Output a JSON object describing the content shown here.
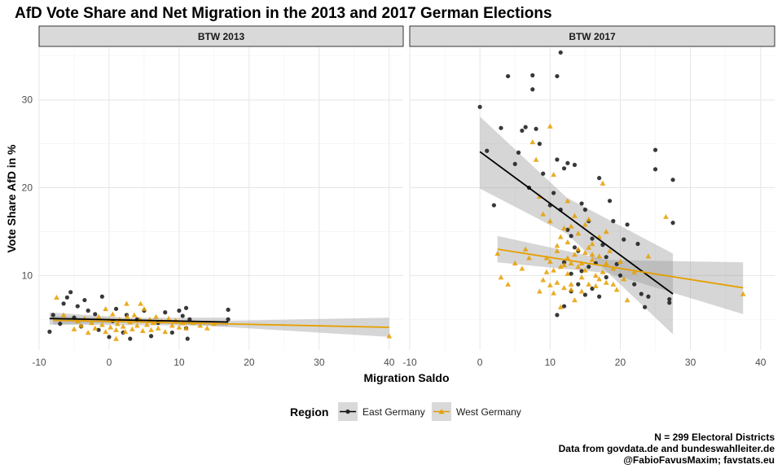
{
  "chart_data": {
    "type": "scatter",
    "title": "AfD Vote Share and Net Migration in the 2013 and 2017 German Elections",
    "xlabel": "Migration Saldo",
    "ylabel": "Vote Share AfD in %",
    "xlim": [
      -10,
      42
    ],
    "ylim": [
      1.5,
      36
    ],
    "x_ticks": [
      -10,
      0,
      10,
      20,
      30,
      40
    ],
    "y_ticks": [
      10,
      20,
      30
    ],
    "grid": true,
    "legend": {
      "title": "Region",
      "position": "bottom",
      "entries": [
        {
          "label": "East Germany",
          "color": "#222222",
          "shape": "circle"
        },
        {
          "label": "West Germany",
          "color": "#E69F00",
          "shape": "triangle"
        }
      ]
    },
    "caption": [
      "N = 299 Electoral Districts",
      "Data from govdata.de and bundeswahlleiter.de",
      "@FabioFavusMaxim; favstats.eu"
    ],
    "panels": [
      {
        "label": "BTW 2013",
        "series": [
          {
            "name": "East Germany",
            "points": [
              [
                -8.5,
                3.6
              ],
              [
                -8,
                5.5
              ],
              [
                -7,
                4.5
              ],
              [
                -6.5,
                6.8
              ],
              [
                -6,
                7.5
              ],
              [
                -5.5,
                8.1
              ],
              [
                -5,
                5.2
              ],
              [
                -4.5,
                6.5
              ],
              [
                -4,
                4.2
              ],
              [
                -3.5,
                7.2
              ],
              [
                -3,
                6.0
              ],
              [
                -2,
                5.6
              ],
              [
                -1.5,
                3.8
              ],
              [
                -1,
                7.6
              ],
              [
                0,
                3.0
              ],
              [
                0.5,
                4.8
              ],
              [
                1,
                6.2
              ],
              [
                2,
                3.5
              ],
              [
                2.5,
                5.5
              ],
              [
                3,
                2.8
              ],
              [
                4,
                5.0
              ],
              [
                5,
                6.0
              ],
              [
                6,
                3.1
              ],
              [
                7,
                4.6
              ],
              [
                8,
                5.8
              ],
              [
                9,
                3.5
              ],
              [
                10,
                6.0
              ],
              [
                10.5,
                5.4
              ],
              [
                11,
                6.3
              ],
              [
                11,
                4.0
              ],
              [
                11.2,
                2.8
              ],
              [
                11.5,
                5.0
              ],
              [
                17,
                5.0
              ],
              [
                17,
                6.1
              ]
            ],
            "trend": {
              "x": [
                -8.5,
                17
              ],
              "y": [
                5.1,
                4.7
              ],
              "ci_low_at_x0": 4.4,
              "ci_high_at_x0": 5.8
            }
          },
          {
            "name": "West Germany",
            "points": [
              [
                -7.5,
                7.5
              ],
              [
                -6.5,
                5.5
              ],
              [
                -5,
                3.9
              ],
              [
                -4.5,
                4.8
              ],
              [
                -4,
                4.3
              ],
              [
                -3.5,
                5.1
              ],
              [
                -3,
                3.5
              ],
              [
                -2.5,
                4.6
              ],
              [
                -2,
                4.0
              ],
              [
                -1.5,
                5.3
              ],
              [
                -1,
                4.4
              ],
              [
                -0.5,
                3.6
              ],
              [
                0,
                4.9
              ],
              [
                0.2,
                4.1
              ],
              [
                0.5,
                5.6
              ],
              [
                1,
                3.8
              ],
              [
                1.2,
                4.5
              ],
              [
                1.5,
                5.0
              ],
              [
                2,
                4.2
              ],
              [
                2.3,
                3.6
              ],
              [
                2.6,
                5.3
              ],
              [
                3,
                4.7
              ],
              [
                3.3,
                3.9
              ],
              [
                3.6,
                5.5
              ],
              [
                4,
                4.3
              ],
              [
                4.4,
                5.0
              ],
              [
                4.8,
                3.7
              ],
              [
                5,
                6.2
              ],
              [
                5.4,
                4.4
              ],
              [
                5.8,
                5.0
              ],
              [
                6,
                3.8
              ],
              [
                6.3,
                4.6
              ],
              [
                6.7,
                5.3
              ],
              [
                7,
                4.0
              ],
              [
                7.5,
                4.8
              ],
              [
                8,
                3.6
              ],
              [
                8.5,
                5.1
              ],
              [
                9,
                4.3
              ],
              [
                9.5,
                4.9
              ],
              [
                10,
                4.1
              ],
              [
                10.5,
                4.6
              ],
              [
                11,
                4.0
              ],
              [
                12,
                4.6
              ],
              [
                13,
                4.3
              ],
              [
                14,
                4.0
              ],
              [
                15,
                4.5
              ],
              [
                2.5,
                6.8
              ],
              [
                -0.5,
                6.2
              ],
              [
                4.5,
                6.8
              ],
              [
                1,
                2.8
              ],
              [
                40,
                3.1
              ]
            ],
            "trend": {
              "x": [
                -8,
                40
              ],
              "y": [
                4.9,
                4.1
              ],
              "ci_low_at_x40": 3.0,
              "ci_high_at_x40": 5.2
            }
          }
        ]
      },
      {
        "label": "BTW 2017",
        "series": [
          {
            "name": "East Germany",
            "points": [
              [
                0,
                29.2
              ],
              [
                1,
                24.2
              ],
              [
                2,
                18
              ],
              [
                3,
                26.8
              ],
              [
                4,
                32.7
              ],
              [
                5,
                22.7
              ],
              [
                5.5,
                24
              ],
              [
                6,
                26.5
              ],
              [
                6.5,
                26.9
              ],
              [
                7,
                20
              ],
              [
                7.5,
                32.8
              ],
              [
                7.5,
                31.2
              ],
              [
                8,
                26.7
              ],
              [
                8.5,
                25
              ],
              [
                10,
                18
              ],
              [
                11,
                32.7
              ],
              [
                11.5,
                35.4
              ],
              [
                11,
                23.2
              ],
              [
                12,
                22.2
              ],
              [
                12.5,
                22.8
              ],
              [
                10.5,
                19.4
              ],
              [
                11.5,
                17.5
              ],
              [
                12.5,
                15.2
              ],
              [
                13,
                14.5
              ],
              [
                13.5,
                13.2
              ],
              [
                14,
                12.8
              ],
              [
                14.5,
                18.2
              ],
              [
                15,
                17.5
              ],
              [
                15.5,
                16.2
              ],
              [
                16,
                14.2
              ],
              [
                16.5,
                11.4
              ],
              [
                17,
                21.1
              ],
              [
                17.5,
                13.5
              ],
              [
                18,
                12.1
              ],
              [
                18.5,
                18.5
              ],
              [
                19,
                16.2
              ],
              [
                19.5,
                11.3
              ],
              [
                20,
                10.0
              ],
              [
                20.5,
                14.1
              ],
              [
                21,
                15.8
              ],
              [
                11,
                5.5
              ],
              [
                12,
                6.5
              ],
              [
                13,
                8.2
              ],
              [
                14,
                9.0
              ],
              [
                15,
                7.8
              ],
              [
                15.5,
                11.0
              ],
              [
                16,
                8.5
              ],
              [
                17,
                7.6
              ],
              [
                18,
                9.8
              ],
              [
                12,
                11.5
              ],
              [
                13,
                10.2
              ],
              [
                14.5,
                10.5
              ],
              [
                22,
                9.0
              ],
              [
                23,
                7.9
              ],
              [
                24,
                7.6
              ],
              [
                25,
                24.3
              ],
              [
                25,
                22.1
              ],
              [
                27,
                6.9
              ],
              [
                27.5,
                20.9
              ],
              [
                27.5,
                16.0
              ],
              [
                27,
                7.3
              ],
              [
                22.5,
                13.6
              ],
              [
                9,
                21.6
              ],
              [
                13.5,
                22.6
              ],
              [
                23.5,
                6.4
              ]
            ],
            "trend": {
              "x": [
                0,
                27.5
              ],
              "y": [
                24.1,
                7.9
              ],
              "ci_low_at_x0": 19.9,
              "ci_high_at_x0": 28.1,
              "ci_low_at_x1": 3.3,
              "ci_high_at_x1": 12.5
            }
          },
          {
            "name": "West Germany",
            "points": [
              [
                2.5,
                12.5
              ],
              [
                3,
                9.8
              ],
              [
                4,
                9.0
              ],
              [
                5,
                11.4
              ],
              [
                6,
                10.8
              ],
              [
                6.5,
                13.0
              ],
              [
                7,
                12.0
              ],
              [
                7.5,
                25.2
              ],
              [
                8,
                23.2
              ],
              [
                8.5,
                8.2
              ],
              [
                9,
                9.5
              ],
              [
                9.5,
                12.0
              ],
              [
                10,
                27.0
              ],
              [
                10,
                16.2
              ],
              [
                10.5,
                10.6
              ],
              [
                10.5,
                8.0
              ],
              [
                11,
                12.8
              ],
              [
                11,
                9.2
              ],
              [
                11.5,
                14.4
              ],
              [
                11.5,
                6.4
              ],
              [
                12,
                11.2
              ],
              [
                12,
                8.6
              ],
              [
                12.5,
                13.8
              ],
              [
                12.5,
                10.2
              ],
              [
                13,
                15.6
              ],
              [
                13,
                9.0
              ],
              [
                13.5,
                12.4
              ],
              [
                13.5,
                7.2
              ],
              [
                14,
                11.0
              ],
              [
                14,
                14.8
              ],
              [
                14.5,
                9.8
              ],
              [
                14.5,
                8.2
              ],
              [
                15,
                12.6
              ],
              [
                15,
                10.6
              ],
              [
                15.5,
                16.4
              ],
              [
                15.5,
                9.0
              ],
              [
                16,
                11.8
              ],
              [
                16,
                13.6
              ],
              [
                16.5,
                10.0
              ],
              [
                16.5,
                8.8
              ],
              [
                17,
                12.2
              ],
              [
                17,
                14.4
              ],
              [
                17.5,
                10.4
              ],
              [
                17.5,
                20.5
              ],
              [
                18,
                11.4
              ],
              [
                18,
                9.2
              ],
              [
                18.5,
                12.8
              ],
              [
                19,
                10.8
              ],
              [
                19.5,
                8.4
              ],
              [
                20,
                11.6
              ],
              [
                20.5,
                9.6
              ],
              [
                21,
                7.2
              ],
              [
                8.5,
                19.0
              ],
              [
                9,
                17.0
              ],
              [
                10.5,
                21.5
              ],
              [
                12.5,
                18.5
              ],
              [
                13.5,
                16.8
              ],
              [
                9.5,
                10.4
              ],
              [
                10,
                11.6
              ],
              [
                11,
                13.4
              ],
              [
                12,
                15.4
              ],
              [
                13,
                11.4
              ],
              [
                14,
                13.0
              ],
              [
                16,
                12.4
              ],
              [
                18,
                15.0
              ],
              [
                19,
                9.0
              ],
              [
                22,
                10.4
              ],
              [
                24,
                12.2
              ],
              [
                26.5,
                16.7
              ],
              [
                37.5,
                7.9
              ],
              [
                10,
                8.9
              ],
              [
                11.5,
                11.0
              ],
              [
                12.5,
                12.0
              ],
              [
                14.5,
                11.4
              ],
              [
                15.5,
                13.2
              ],
              [
                17,
                9.6
              ],
              [
                13,
                8.4
              ],
              [
                15,
                15.8
              ]
            ],
            "trend": {
              "x": [
                2.5,
                37.5
              ],
              "y": [
                13.0,
                8.6
              ],
              "ci_low_at_x0": 11.5,
              "ci_high_at_x0": 14.5,
              "ci_low_at_x1": 5.6,
              "ci_high_at_x1": 11.5
            }
          }
        ]
      }
    ]
  }
}
